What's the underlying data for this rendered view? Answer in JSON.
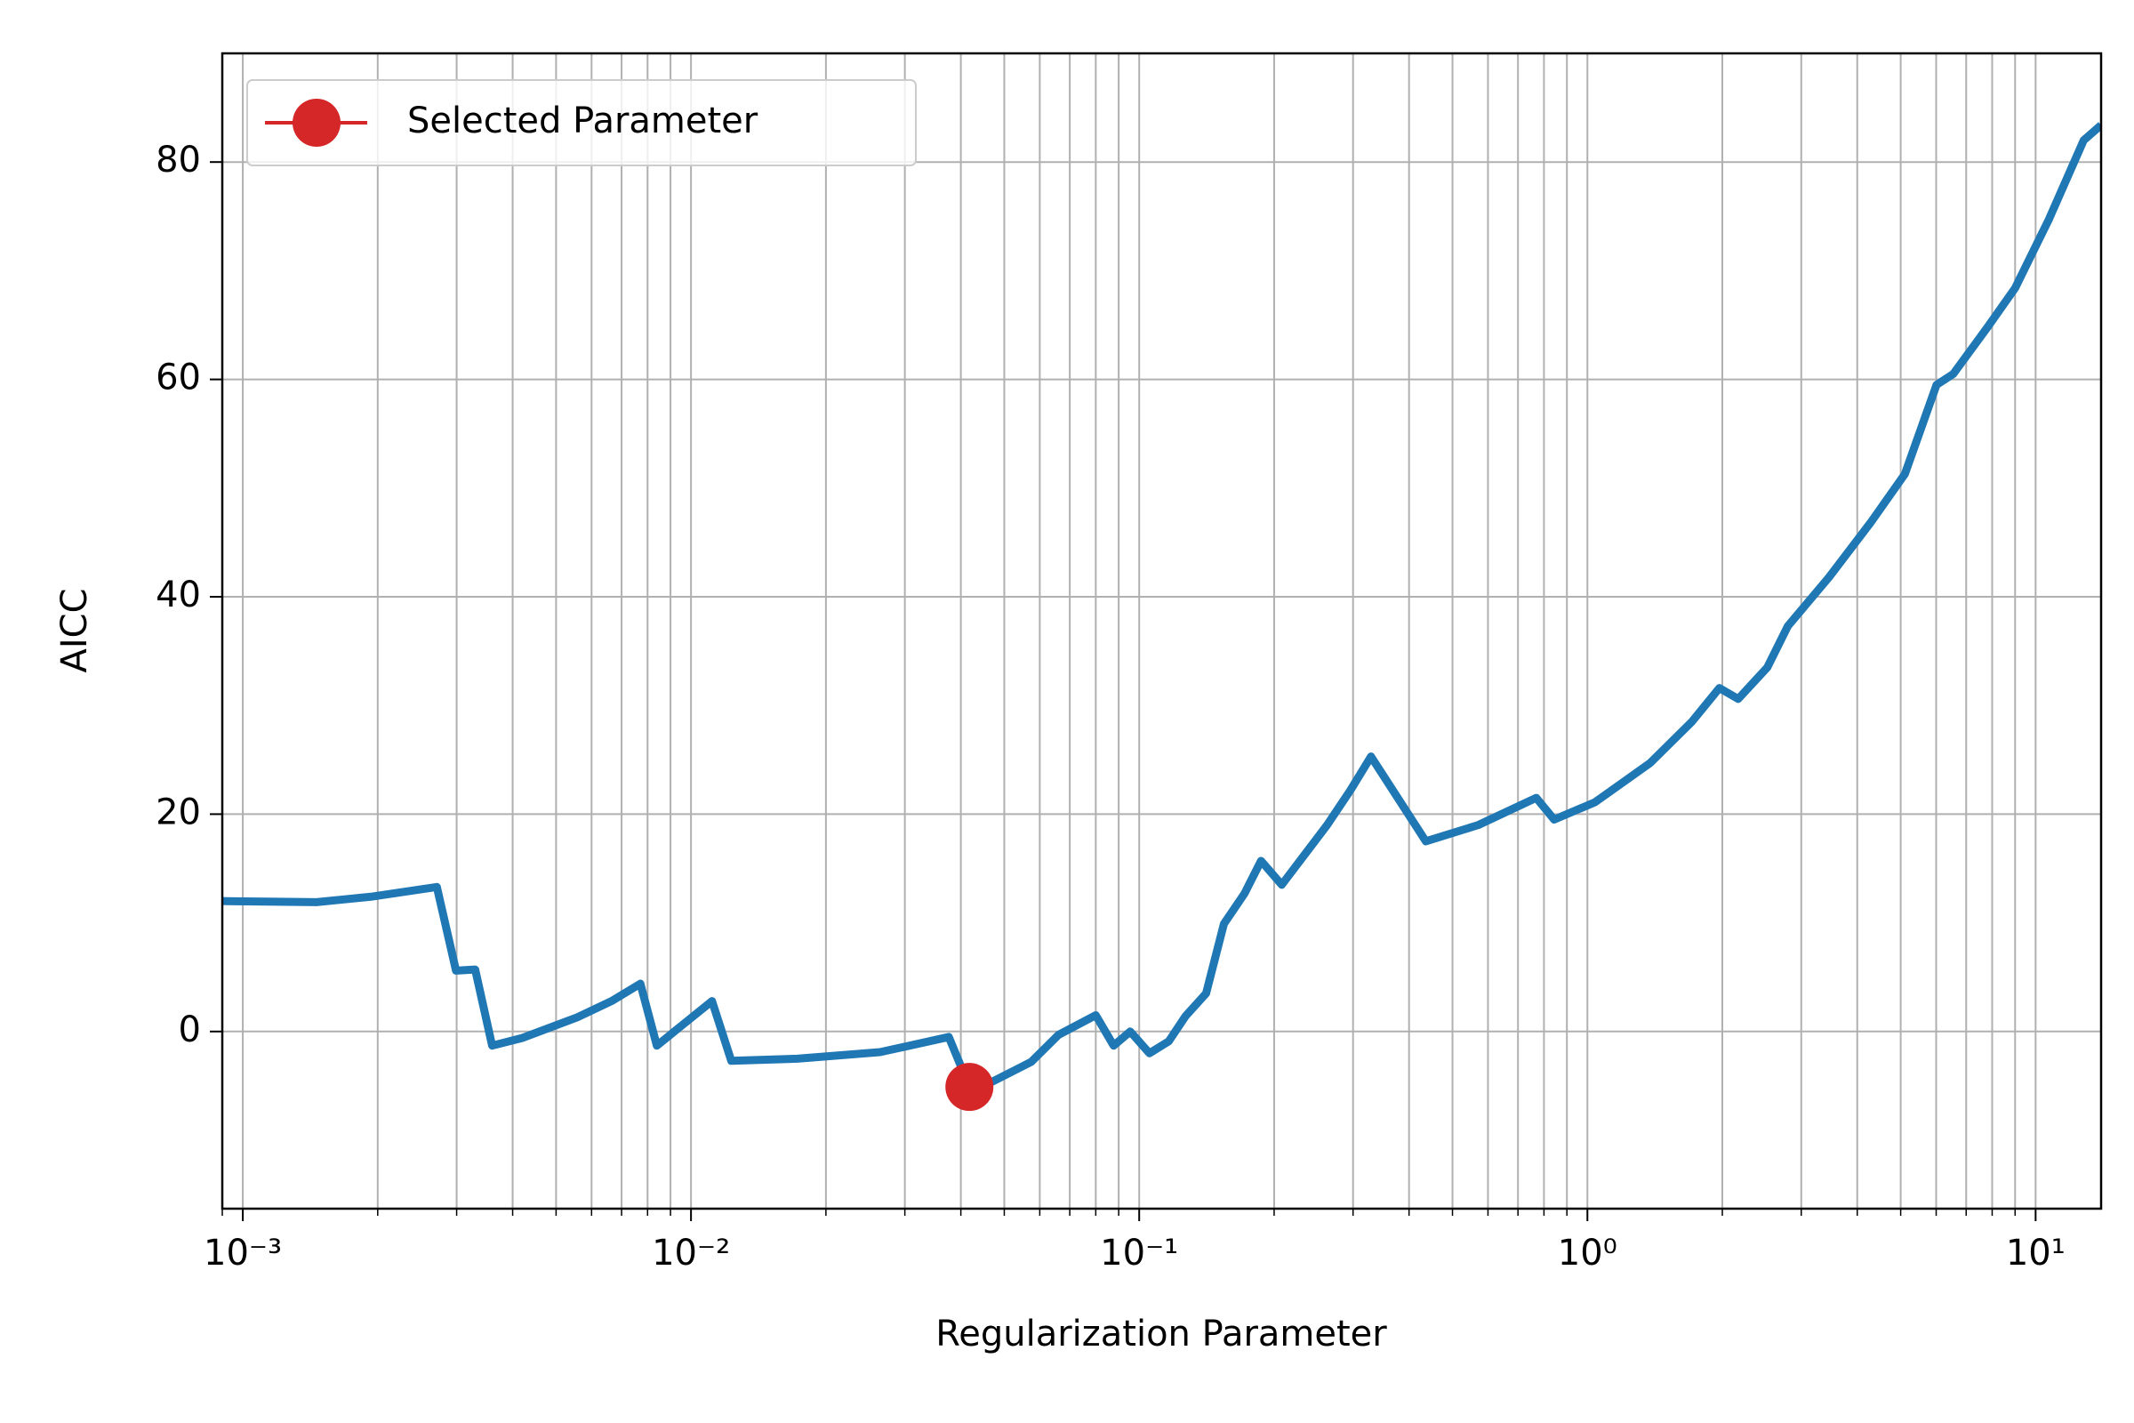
{
  "chart_data": {
    "type": "line",
    "xlabel": "Regularization Parameter",
    "ylabel": "AICC",
    "xscale": "log",
    "grid": true,
    "legend": "upper left",
    "xlim": [
      0.0009,
      14
    ],
    "ylim": [
      -16.3,
      90
    ],
    "xticks": [
      {
        "value": 0.001,
        "label": "10⁻³"
      },
      {
        "value": 0.01,
        "label": "10⁻²"
      },
      {
        "value": 0.1,
        "label": "10⁻¹"
      },
      {
        "value": 1,
        "label": "10⁰"
      },
      {
        "value": 10,
        "label": "10¹"
      }
    ],
    "xminorticks": [
      0.0009,
      0.002,
      0.003,
      0.004,
      0.005,
      0.006,
      0.007,
      0.008,
      0.009,
      0.02,
      0.03,
      0.04,
      0.05,
      0.06,
      0.07,
      0.08,
      0.09,
      0.2,
      0.3,
      0.4,
      0.5,
      0.6,
      0.7,
      0.8,
      0.9,
      2,
      3,
      4,
      5,
      6,
      7,
      8,
      9
    ],
    "yticks": [
      0,
      20,
      40,
      60,
      80
    ],
    "series": [
      {
        "color": "#1f77b4",
        "x": [
          0.0009,
          0.00146,
          0.00193,
          0.00271,
          0.00299,
          0.0033,
          0.0036,
          0.0042,
          0.00557,
          0.00665,
          0.00771,
          0.00839,
          0.01114,
          0.0123,
          0.01727,
          0.0264,
          0.0376,
          0.0418,
          0.0471,
          0.0574,
          0.0661,
          0.08,
          0.0877,
          0.0955,
          0.1054,
          0.1164,
          0.1268,
          0.141,
          0.1545,
          0.1718,
          0.187,
          0.208,
          0.2626,
          0.296,
          0.329,
          0.436,
          0.571,
          0.769,
          0.843,
          1.04,
          1.38,
          1.71,
          1.97,
          2.17,
          2.52,
          2.8,
          3.46,
          4.28,
          5.11,
          6.01,
          6.55,
          7.81,
          9.0,
          10.7,
          12.8,
          14.0
        ],
        "values": [
          12.0,
          11.9,
          12.4,
          13.3,
          5.6,
          5.7,
          -1.3,
          -0.6,
          1.3,
          2.8,
          4.4,
          -1.3,
          2.8,
          -2.7,
          -2.5,
          -1.9,
          -0.5,
          -5.1,
          -4.6,
          -2.8,
          -0.3,
          1.5,
          -1.3,
          0,
          -2.0,
          -0.9,
          1.4,
          3.5,
          9.9,
          12.7,
          15.7,
          13.5,
          19.0,
          22.2,
          25.3,
          17.5,
          19.0,
          21.5,
          19.5,
          21.1,
          24.7,
          28.5,
          31.6,
          30.6,
          33.5,
          37.3,
          41.8,
          46.8,
          51.3,
          59.5,
          60.5,
          64.8,
          68.4,
          74.7,
          82.0,
          83.4
        ]
      },
      {
        "name": "Selected Parameter",
        "color": "#d62728",
        "x": [
          0.0418
        ],
        "values": [
          -5.1
        ]
      }
    ]
  }
}
